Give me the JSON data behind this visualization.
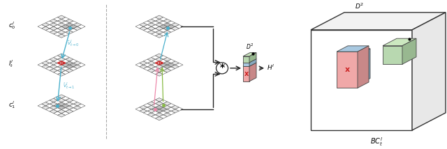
{
  "bg_color": "#ffffff",
  "grid_edge": "#555555",
  "cell_light": "#e8e8e8",
  "cell_white": "#ffffff",
  "cell_gray": "#c8c8c8",
  "arrow_color": "#222222",
  "cyan_color": "#4ab0cc",
  "red_color": "#cc2222",
  "green_arrow": "#88aa44",
  "pink_arrow": "#ee8888",
  "green_box": "#b8d8b0",
  "green_box_top": "#cce8c0",
  "green_box_side": "#98b890",
  "pink_box": "#f0a8a8",
  "pink_box_side": "#c88888",
  "blue_box": "#a8c8e0",
  "blue_box_top": "#c0ddf0",
  "blue_box_side": "#88aac0",
  "sep_color": "#aaaaaa",
  "label_fs": 6.5,
  "small_fs": 5.5,
  "grid_rows": 6,
  "grid_cols": 6,
  "grid_size": 38
}
